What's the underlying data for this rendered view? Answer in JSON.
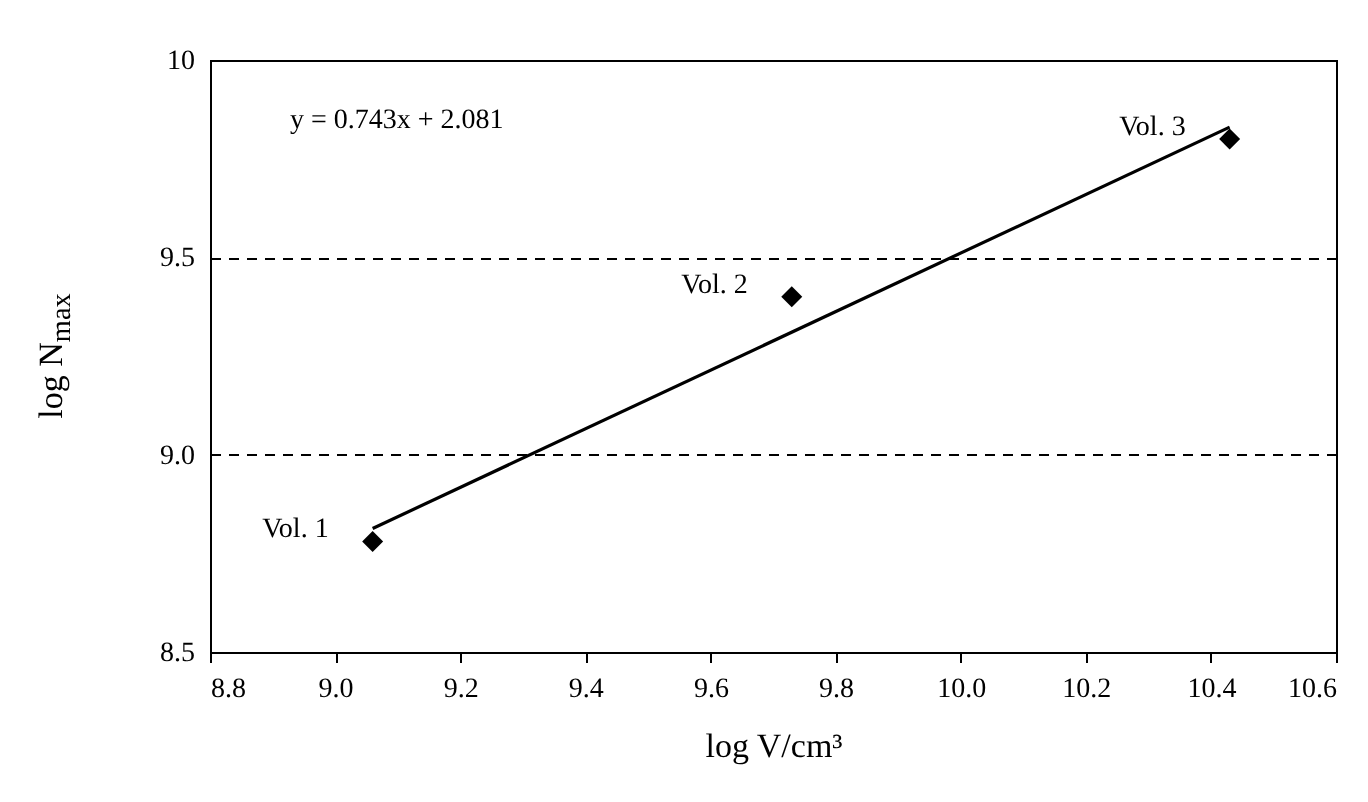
{
  "chart_data": {
    "type": "scatter",
    "xlabel": "log V/cm³",
    "ylabel": "log N$_{max}$",
    "series": [
      {
        "color": "#000000",
        "x": [
          9.06,
          9.73,
          10.43
        ],
        "values": [
          8.78,
          9.4,
          9.8
        ],
        "marker": "diamond"
      },
      {
        "type": "line",
        "color": "#000000",
        "x": [
          9.06,
          10.43
        ],
        "values": [
          8.813,
          9.83
        ],
        "line_style": "solid"
      }
    ],
    "annotations": [
      "y = 0.743x + 2.081",
      {
        "text": "Vol. 1",
        "x": 9.06,
        "y": 8.78
      },
      {
        "text": "Vol. 2",
        "x": 9.73,
        "y": 9.4
      },
      {
        "text": "Vol. 3",
        "x": 10.43,
        "y": 9.8
      }
    ],
    "xlim": [
      8.8,
      10.6
    ],
    "xticks": [
      8.8,
      {
        "value": 9,
        "label": "9.0"
      },
      9.2,
      9.4,
      9.6,
      9.8,
      {
        "value": 10,
        "label": "10.0"
      },
      10.2,
      10.4,
      10.6
    ],
    "ylim": [
      8.5,
      10
    ],
    "yticks": [
      8.5,
      {
        "value": 9,
        "label": "9.0"
      },
      9.5,
      10
    ],
    "grid": "y"
  }
}
